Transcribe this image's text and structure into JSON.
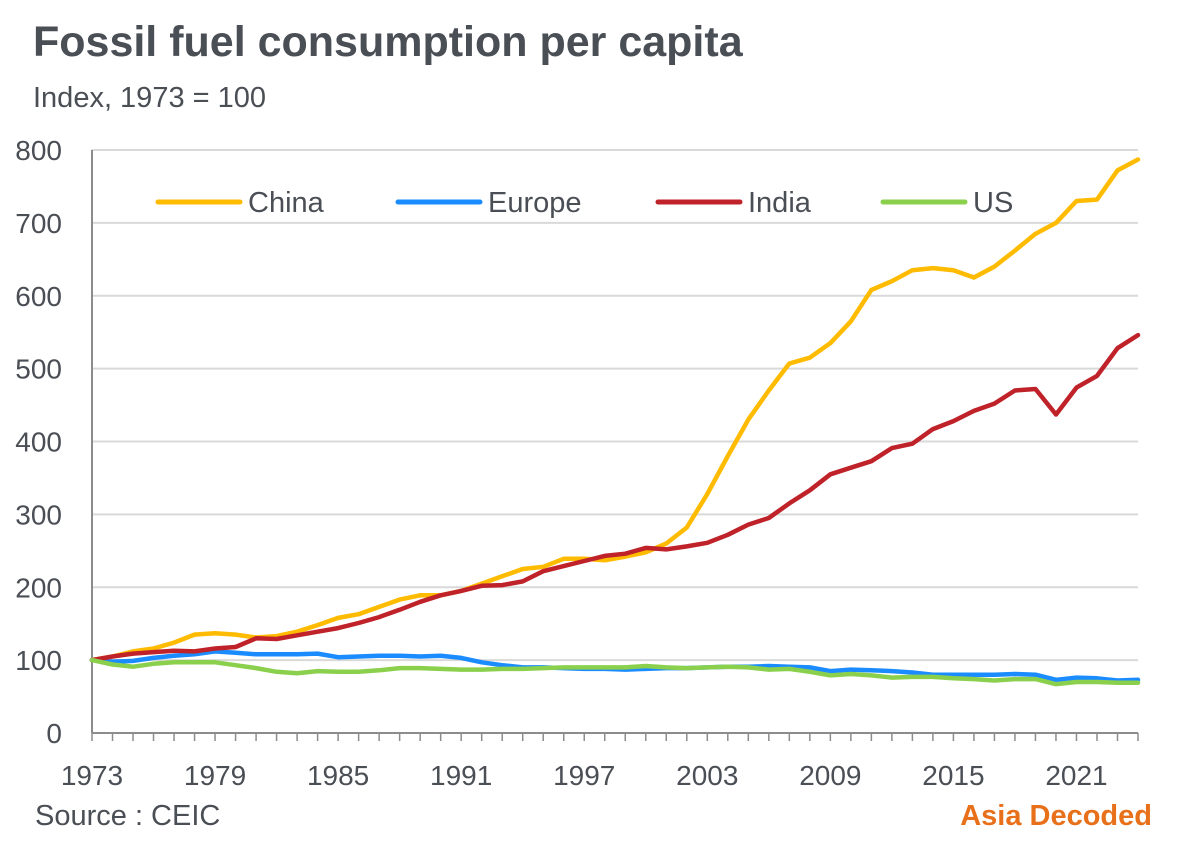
{
  "header": {
    "title": "Fossil fuel consumption per capita",
    "subtitle": "Index, 1973 = 100"
  },
  "footer": {
    "source": "Source : CEIC",
    "brand": "Asia Decoded",
    "brand_color": "#e8701a"
  },
  "chart_data": {
    "type": "line",
    "title": "Fossil fuel consumption per capita",
    "subtitle": "Index, 1973 = 100",
    "xlabel": "",
    "ylabel": "",
    "xlim": [
      1973,
      2024
    ],
    "ylim": [
      0,
      800
    ],
    "y_ticks": [
      "0",
      "100",
      "200",
      "300",
      "400",
      "500",
      "600",
      "700",
      "800"
    ],
    "x_ticks": [
      "1973",
      "1979",
      "1985",
      "1991",
      "1997",
      "2003",
      "2009",
      "2015",
      "2021"
    ],
    "grid": "horizontal",
    "legend_position": "top",
    "x": [
      1973,
      1974,
      1975,
      1976,
      1977,
      1978,
      1979,
      1980,
      1981,
      1982,
      1983,
      1984,
      1985,
      1986,
      1987,
      1988,
      1989,
      1990,
      1991,
      1992,
      1993,
      1994,
      1995,
      1996,
      1997,
      1998,
      1999,
      2000,
      2001,
      2002,
      2003,
      2004,
      2005,
      2006,
      2007,
      2008,
      2009,
      2010,
      2011,
      2012,
      2013,
      2014,
      2015,
      2016,
      2017,
      2018,
      2019,
      2020,
      2021,
      2022,
      2023,
      2024
    ],
    "series": [
      {
        "name": "China",
        "color": "#ffbb00",
        "values": [
          100,
          105,
          112,
          116,
          124,
          135,
          137,
          135,
          131,
          133,
          139,
          148,
          158,
          163,
          173,
          183,
          189,
          189,
          195,
          205,
          215,
          225,
          228,
          239,
          239,
          237,
          242,
          248,
          260,
          282,
          328,
          380,
          430,
          470,
          507,
          515,
          535,
          565,
          608,
          620,
          635,
          638,
          635,
          625,
          640,
          662,
          685,
          700,
          730,
          732,
          772,
          787
        ]
      },
      {
        "name": "Europe",
        "color": "#1a8cff",
        "values": [
          100,
          98,
          99,
          103,
          106,
          108,
          112,
          110,
          108,
          108,
          108,
          109,
          104,
          105,
          106,
          106,
          105,
          106,
          103,
          97,
          93,
          90,
          90,
          89,
          88,
          88,
          87,
          88,
          89,
          89,
          90,
          91,
          91,
          92,
          91,
          90,
          85,
          87,
          86,
          85,
          83,
          80,
          80,
          80,
          80,
          81,
          80,
          73,
          76,
          75,
          72,
          73
        ]
      },
      {
        "name": "India",
        "color": "#c0222a",
        "values": [
          100,
          105,
          109,
          111,
          113,
          112,
          116,
          118,
          130,
          129,
          134,
          139,
          144,
          151,
          159,
          169,
          180,
          189,
          195,
          202,
          203,
          208,
          222,
          229,
          236,
          243,
          246,
          254,
          252,
          256,
          261,
          272,
          286,
          295,
          315,
          333,
          355,
          364,
          373,
          391,
          397,
          417,
          428,
          442,
          452,
          470,
          472,
          437,
          474,
          490,
          528,
          546
        ]
      },
      {
        "name": "US",
        "color": "#8bd04c",
        "values": [
          100,
          94,
          91,
          95,
          97,
          97,
          97,
          93,
          89,
          84,
          82,
          85,
          84,
          84,
          86,
          89,
          89,
          88,
          87,
          87,
          88,
          88,
          89,
          90,
          90,
          90,
          90,
          92,
          90,
          89,
          90,
          91,
          90,
          87,
          88,
          84,
          79,
          81,
          79,
          76,
          77,
          77,
          75,
          74,
          72,
          74,
          74,
          67,
          70,
          70,
          69,
          69
        ]
      }
    ]
  }
}
